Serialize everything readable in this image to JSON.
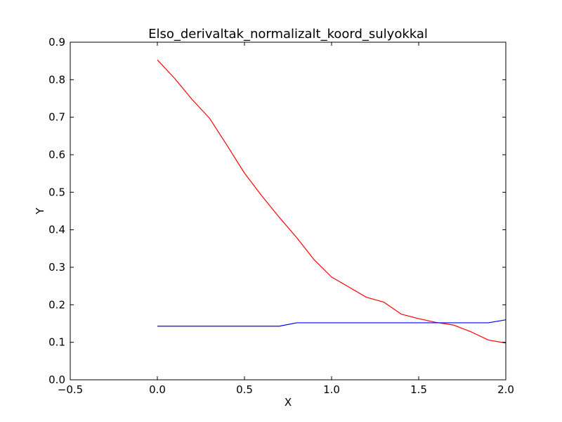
{
  "chart_data": {
    "type": "line",
    "title": "Elso_derivaltak_normalizalt_koord_sulyokkal",
    "xlabel": "X",
    "ylabel": "Y",
    "xlim": [
      -0.5,
      2.0
    ],
    "ylim": [
      0.0,
      0.9
    ],
    "xticks": [
      -0.5,
      0.0,
      0.5,
      1.0,
      1.5,
      2.0
    ],
    "yticks": [
      0.0,
      0.1,
      0.2,
      0.3,
      0.4,
      0.5,
      0.6,
      0.7,
      0.8,
      0.9
    ],
    "xtick_labels": [
      "−0.5",
      "0.0",
      "0.5",
      "1.0",
      "1.5",
      "2.0"
    ],
    "ytick_labels": [
      "0.0",
      "0.1",
      "0.2",
      "0.3",
      "0.4",
      "0.5",
      "0.6",
      "0.7",
      "0.8",
      "0.9"
    ],
    "grid": false,
    "legend": "none",
    "x": [
      0.0,
      0.1,
      0.2,
      0.3,
      0.4,
      0.5,
      0.6,
      0.7,
      0.8,
      0.9,
      1.0,
      1.1,
      1.2,
      1.3,
      1.4,
      1.5,
      1.6,
      1.7,
      1.8,
      1.9,
      2.0
    ],
    "series": [
      {
        "color": "#ff0000",
        "values": [
          0.853,
          0.803,
          0.747,
          0.697,
          0.625,
          0.551,
          0.49,
          0.433,
          0.379,
          0.32,
          0.274,
          0.247,
          0.22,
          0.207,
          0.175,
          0.163,
          0.153,
          0.146,
          0.128,
          0.106,
          0.098
        ]
      },
      {
        "color": "#0000ff",
        "values": [
          0.143,
          0.143,
          0.143,
          0.143,
          0.143,
          0.143,
          0.143,
          0.143,
          0.152,
          0.152,
          0.152,
          0.152,
          0.152,
          0.152,
          0.152,
          0.152,
          0.152,
          0.152,
          0.152,
          0.152,
          0.16
        ]
      }
    ]
  }
}
